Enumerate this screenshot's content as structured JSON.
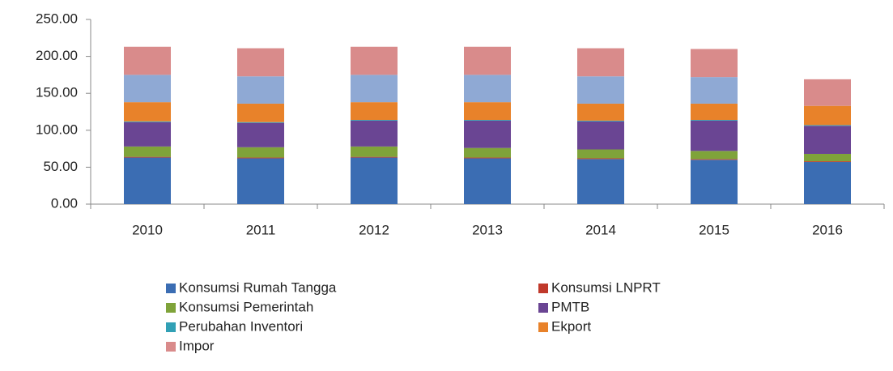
{
  "chart_data": {
    "type": "stacked_bar",
    "categories": [
      "2010",
      "2011",
      "2012",
      "2013",
      "2014",
      "2015",
      "2016"
    ],
    "series": [
      {
        "name": "Konsumsi Rumah Tangga",
        "color": "#3b6db3",
        "values": [
          63,
          62,
          63,
          62,
          61,
          60,
          57
        ]
      },
      {
        "name": "Konsumsi LNPRT",
        "color": "#c0392b",
        "values": [
          1,
          1,
          1,
          1,
          1,
          1,
          1
        ]
      },
      {
        "name": "Konsumsi Pemerintah",
        "color": "#7fa33a",
        "values": [
          14,
          14,
          14,
          13,
          12,
          11,
          10
        ]
      },
      {
        "name": "PMTB",
        "color": "#6a4593",
        "values": [
          33,
          33,
          35,
          37,
          38,
          41,
          38
        ]
      },
      {
        "name": "Perubahan Inventori",
        "color": "#31a0b5",
        "values": [
          1,
          1,
          1,
          1,
          1,
          1,
          1
        ]
      },
      {
        "name": "Ekport",
        "color": "#e8822a",
        "values": [
          26,
          25,
          24,
          24,
          23,
          22,
          26
        ]
      },
      {
        "color": "#8fa9d4",
        "values": [
          37,
          37,
          37,
          37,
          37,
          36,
          null
        ]
      },
      {
        "name": "Impor",
        "color": "#d98b8b",
        "values": [
          38,
          38,
          38,
          38,
          38,
          38,
          36
        ]
      }
    ],
    "ylim": [
      0,
      250
    ],
    "yticks": [
      {
        "value": 0,
        "label": "0.00"
      },
      {
        "value": 50,
        "label": "50.00"
      },
      {
        "value": 100,
        "label": "100.00"
      },
      {
        "value": 150,
        "label": "150.00"
      },
      {
        "value": 200,
        "label": "200.00"
      },
      {
        "value": 250,
        "label": "250.00"
      }
    ]
  }
}
